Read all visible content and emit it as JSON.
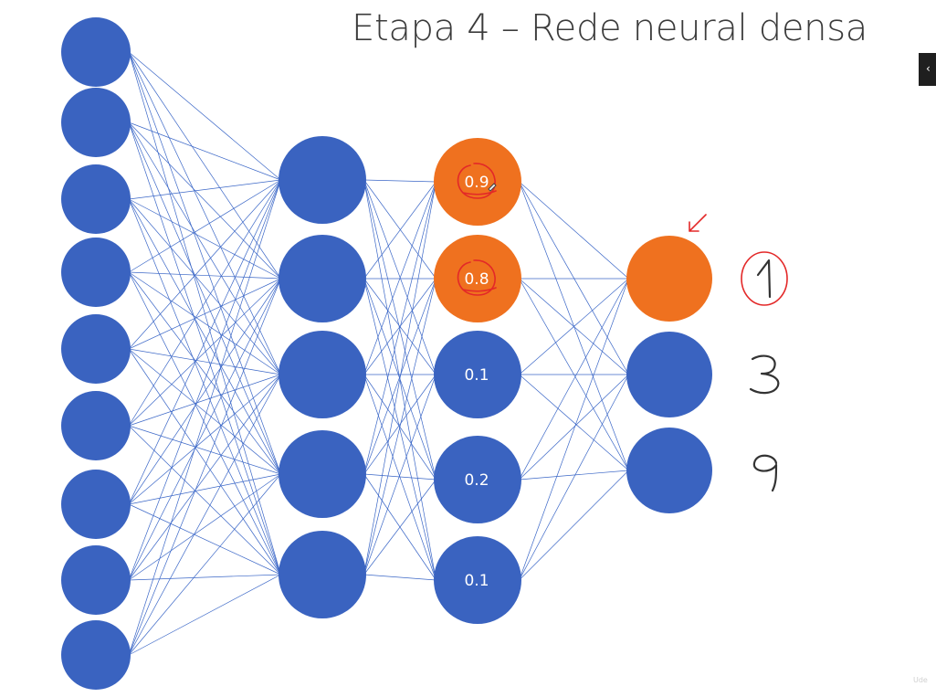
{
  "slide": {
    "title": "Etapa 4 – Rede neural densa"
  },
  "colors": {
    "node_default": "#3a63c0",
    "node_active": "#ef711f",
    "connection": "#3b67c7",
    "annotation": "#e32828",
    "handwriting": "#333333"
  },
  "network": {
    "layers": [
      {
        "name": "input-layer",
        "nodes": [
          {
            "label": "",
            "active": false
          },
          {
            "label": "",
            "active": false
          },
          {
            "label": "",
            "active": false
          },
          {
            "label": "",
            "active": false
          },
          {
            "label": "",
            "active": false
          },
          {
            "label": "",
            "active": false
          },
          {
            "label": "",
            "active": false
          },
          {
            "label": "",
            "active": false
          },
          {
            "label": "",
            "active": false
          }
        ]
      },
      {
        "name": "hidden-layer-1",
        "nodes": [
          {
            "label": "",
            "active": false
          },
          {
            "label": "",
            "active": false
          },
          {
            "label": "",
            "active": false
          },
          {
            "label": "",
            "active": false
          },
          {
            "label": "",
            "active": false
          }
        ]
      },
      {
        "name": "hidden-layer-2",
        "nodes": [
          {
            "label": "0.9",
            "active": true
          },
          {
            "label": "0.8",
            "active": true
          },
          {
            "label": "0.1",
            "active": false
          },
          {
            "label": "0.2",
            "active": false
          },
          {
            "label": "0.1",
            "active": false
          }
        ]
      },
      {
        "name": "output-layer",
        "nodes": [
          {
            "label": "",
            "active": true
          },
          {
            "label": "",
            "active": false
          },
          {
            "label": "",
            "active": false
          }
        ]
      }
    ]
  },
  "output_classes": [
    {
      "value": "1",
      "icon": "handwritten-digit-1",
      "circled": true
    },
    {
      "value": "3",
      "icon": "handwritten-digit-3",
      "circled": false
    },
    {
      "value": "9",
      "icon": "handwritten-digit-9",
      "circled": false
    }
  ],
  "overlay": {
    "watermark": "Ude"
  }
}
